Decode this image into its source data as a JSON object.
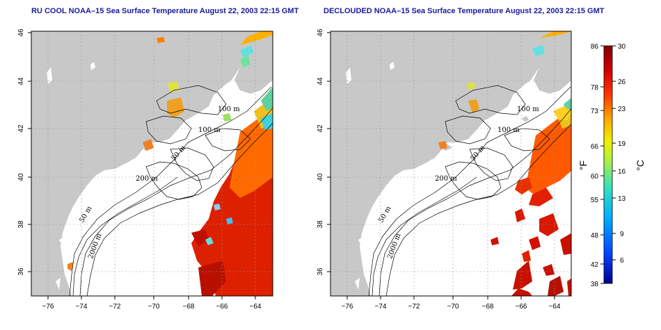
{
  "panels": [
    {
      "title": "RU COOL NOAA–15 Sea Surface Temperature August 22, 2003 22:15 GMT",
      "contour_labels": [
        "100 m",
        "100 m",
        "50 m",
        "200 m",
        "50 m",
        "2000 m"
      ]
    },
    {
      "title": "DECLOUDED NOAA–15 Sea Surface Temperature August 22, 2003 22:15 GMT",
      "contour_labels": [
        "100 m",
        "100 m",
        "50 m",
        "200 m",
        "50 m",
        "2000 m"
      ]
    }
  ],
  "axes": {
    "x_ticks": [
      "−76",
      "−74",
      "−72",
      "−70",
      "−68",
      "−66",
      "−64"
    ],
    "y_ticks": [
      "36",
      "38",
      "40",
      "42",
      "44",
      "46"
    ]
  },
  "colorbar": {
    "fahrenheit_label": "°F",
    "celsius_label": "°C",
    "fahrenheit_ticks": [
      "86",
      "78",
      "73",
      "66",
      "60",
      "55",
      "48",
      "42",
      "38"
    ],
    "celsius_ticks": [
      "30",
      "26",
      "23",
      "19",
      "16",
      "13",
      "9",
      "6"
    ],
    "colors": [
      "#000090",
      "#0050ff",
      "#00b0ff",
      "#40e0d0",
      "#a0f060",
      "#f0f000",
      "#ffa000",
      "#ff4000",
      "#d00000",
      "#800000"
    ]
  },
  "colors": {
    "land": "#c8c8c8",
    "water": "#ffffff",
    "title": "#1a1a9c",
    "warm_water": "#e02000"
  }
}
